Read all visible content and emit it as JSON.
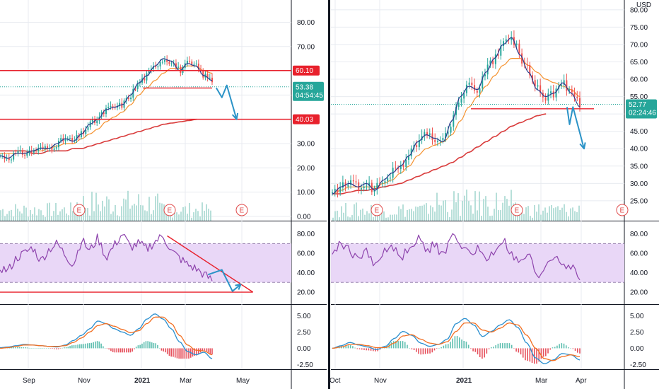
{
  "colors": {
    "price": "#2a3a8c",
    "ema_short": "#f5922f",
    "ema_long": "#d93b3b",
    "rsi": "#8e44ad",
    "rsi_band": "#e9d7f7",
    "macd": "#2a8fcf",
    "signal": "#f26f22",
    "hist_pos": "#5fbfb0",
    "hist_neg": "#e6505c",
    "volume": "#b7dfd9",
    "annotation_red": "#e8212c",
    "annotation_blue": "#2b93c7",
    "price_badge": "#26a69a",
    "grid": "#e8ebf0",
    "separator": "#131722"
  },
  "chart_data": [
    {
      "type": "line",
      "panel": "left",
      "x_tick_labels": [
        "Sep",
        "Nov",
        "2021",
        "Mar",
        "May"
      ],
      "price_axis": {
        "ticks": [
          "80.00",
          "70.00",
          "60.00",
          "50.00",
          "40.00",
          "30.00",
          "20.00",
          "10.00",
          "0.00"
        ],
        "ylim": [
          0,
          88
        ]
      },
      "price_close_approx": [
        25,
        24,
        26,
        26,
        27,
        28,
        28,
        30,
        32,
        31,
        34,
        38,
        40,
        44,
        45,
        46,
        50,
        55,
        58,
        62,
        65,
        64,
        60,
        63,
        62,
        58,
        56
      ],
      "ema_short_approx": [
        26,
        26,
        26,
        26,
        27,
        27,
        28,
        29,
        30,
        30,
        32,
        34,
        36,
        39,
        41,
        43,
        46,
        50,
        53,
        56,
        59,
        61,
        61,
        62,
        62,
        60,
        59
      ],
      "ema_long_approx": [
        27,
        27,
        27,
        27,
        26,
        26,
        27,
        27,
        27,
        28,
        28,
        29,
        30,
        31,
        32,
        33,
        34,
        35,
        36,
        37,
        38,
        38.5,
        39,
        39.5,
        40
      ],
      "horizontal_levels": [
        {
          "label": "60.10",
          "value": 60.1
        },
        {
          "label": "40.03",
          "value": 40.03
        },
        {
          "label": "",
          "value": 52.9
        }
      ],
      "last_price": {
        "label": "53.38",
        "value": 53.38,
        "countdown": "04:54:45"
      },
      "projection_arrow": [
        {
          "x": 26.5,
          "y": 53
        },
        {
          "x": 27.2,
          "y": 49
        },
        {
          "x": 27.8,
          "y": 54
        },
        {
          "x": 29,
          "y": 40
        }
      ],
      "earnings_markers": [
        "E",
        "E",
        "E"
      ],
      "rsi": {
        "ticks": [
          "80.00",
          "60.00",
          "40.00",
          "20.00"
        ],
        "band": [
          30,
          70
        ],
        "values_approx": [
          45,
          42,
          55,
          60,
          66,
          52,
          64,
          70,
          58,
          48,
          74,
          62,
          76,
          55,
          68,
          80,
          66,
          70,
          64,
          72,
          78,
          62,
          55,
          48,
          44,
          38,
          32
        ],
        "trendline": [
          {
            "x": 20.5,
            "y": 78
          },
          {
            "x": 31,
            "y": 20
          }
        ],
        "support": 20,
        "projection_arrow": [
          {
            "x": 25.5,
            "y": 38
          },
          {
            "x": 27.2,
            "y": 43
          },
          {
            "x": 28.5,
            "y": 21
          },
          {
            "x": 29.5,
            "y": 28
          }
        ]
      },
      "macd": {
        "ticks": [
          "5.00",
          "2.50",
          "0.00",
          "-2.50"
        ],
        "macd_approx": [
          0.1,
          0.2,
          0.4,
          0.6,
          0.5,
          0.4,
          0.3,
          0.2,
          0.5,
          1.2,
          2.0,
          3.0,
          4.2,
          3.8,
          3.0,
          2.5,
          2.0,
          3.0,
          4.5,
          5.3,
          4.5,
          3.0,
          1.0,
          -0.5,
          -1.0,
          -0.6,
          -1.6
        ],
        "signal_approx": [
          0.0,
          0.1,
          0.3,
          0.5,
          0.5,
          0.4,
          0.3,
          0.3,
          0.4,
          0.9,
          1.6,
          2.5,
          3.5,
          3.8,
          3.4,
          2.9,
          2.4,
          2.7,
          3.8,
          4.8,
          4.8,
          3.8,
          2.0,
          0.5,
          -0.3,
          -0.4,
          -1.0
        ]
      }
    },
    {
      "type": "line",
      "panel": "right",
      "currency": "USD",
      "x_tick_labels": [
        "Oct",
        "Nov",
        "2021",
        "Mar",
        "Apr"
      ],
      "price_axis": {
        "ticks": [
          "80.00",
          "75.00",
          "70.00",
          "65.00",
          "60.00",
          "55.00",
          "50.00",
          "45.00",
          "40.00",
          "35.00",
          "30.00",
          "25.00"
        ],
        "ylim": [
          20.5,
          82
        ]
      },
      "price_close_approx": [
        27,
        29,
        30,
        29,
        30,
        28,
        31,
        33,
        35,
        38,
        42,
        44,
        43,
        42,
        48,
        55,
        58,
        57,
        62,
        66,
        70,
        72,
        67,
        62,
        57,
        55,
        56,
        59,
        56,
        52
      ],
      "ema_short_approx": [
        27,
        28,
        29,
        29,
        29,
        29,
        30,
        31,
        33,
        35,
        38,
        40,
        41,
        42,
        44,
        48,
        52,
        55,
        58,
        61,
        64,
        66,
        66,
        64,
        62,
        60,
        59,
        58,
        57,
        55
      ],
      "ema_long_approx": [
        27,
        27,
        27.5,
        28,
        28,
        28.5,
        29,
        29.5,
        30,
        31,
        32,
        33,
        34,
        35,
        36,
        37.5,
        39,
        40.5,
        42,
        43.5,
        45,
        46.5,
        47.5,
        48.5,
        49.5,
        50
      ],
      "horizontal_levels": [
        {
          "label": "",
          "value": 51.5
        }
      ],
      "last_price": {
        "label": "52.77",
        "value": 52.77,
        "countdown": "02:24:46"
      },
      "projection_arrow": [
        {
          "x": 27.5,
          "y": 52
        },
        {
          "x": 27.8,
          "y": 47
        },
        {
          "x": 28.2,
          "y": 52
        },
        {
          "x": 29.5,
          "y": 40
        }
      ],
      "earnings_markers": [
        "E",
        "E",
        "E"
      ],
      "rsi": {
        "ticks": [
          "80.00",
          "60.00",
          "40.00",
          "20.00"
        ],
        "band": [
          30,
          70
        ],
        "values_approx": [
          60,
          70,
          64,
          52,
          66,
          45,
          62,
          68,
          54,
          66,
          76,
          62,
          70,
          56,
          78,
          72,
          58,
          66,
          52,
          62,
          74,
          58,
          48,
          60,
          32,
          48,
          58,
          50,
          46,
          34
        ]
      },
      "macd": {
        "ticks": [
          "5.00",
          "2.50",
          "0.00",
          "-2.50"
        ],
        "macd_approx": [
          0.0,
          0.4,
          0.9,
          0.5,
          0.2,
          -0.2,
          0.3,
          1.5,
          2.6,
          2.0,
          0.8,
          0.3,
          0.6,
          1.4,
          3.8,
          4.6,
          3.6,
          1.8,
          2.6,
          3.6,
          4.4,
          3.2,
          0.8,
          -1.5,
          -2.4,
          -1.8,
          -0.8,
          -1.0,
          -1.8
        ],
        "signal_approx": [
          0.0,
          0.2,
          0.6,
          0.6,
          0.4,
          0.1,
          0.1,
          0.8,
          1.9,
          2.1,
          1.4,
          0.8,
          0.6,
          1.0,
          2.6,
          3.9,
          3.9,
          2.8,
          2.5,
          3.1,
          3.9,
          3.6,
          2.0,
          0.0,
          -1.6,
          -1.9,
          -1.3,
          -1.0,
          -1.3
        ]
      }
    }
  ]
}
